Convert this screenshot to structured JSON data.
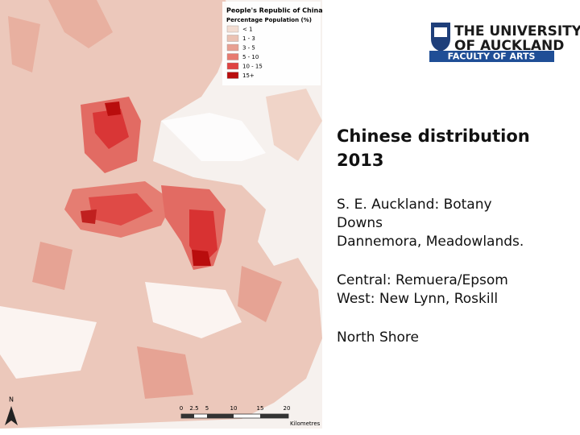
{
  "legend": {
    "title": "People's Republic of China",
    "subtitle": "Percentage Population (%)",
    "items": [
      {
        "label": "< 1",
        "color": "#f3ddd2"
      },
      {
        "label": "1 - 3",
        "color": "#ebc2b3"
      },
      {
        "label": "3 - 5",
        "color": "#e8a092"
      },
      {
        "label": "5 - 10",
        "color": "#e77a70"
      },
      {
        "label": "10 - 15",
        "color": "#df4342"
      },
      {
        "label": "15+",
        "color": "#b90d0d"
      }
    ]
  },
  "scale_bar": {
    "ticks": [
      "0",
      "2.5",
      "5",
      "10",
      "15",
      "20"
    ],
    "unit": "Kilometres"
  },
  "north": "N",
  "logo": {
    "line1": "THE UNIVERSITY",
    "line2": "OF AUCKLAND",
    "faculty": "FACULTY OF ARTS"
  },
  "content": {
    "title": [
      "Chinese distribution",
      "2013"
    ],
    "paragraphs": [
      [
        "S. E. Auckland: Botany",
        "Downs",
        "Dannemora, Meadowlands."
      ],
      [
        "Central: Remuera/Epsom",
        "West: New Lynn, Roskill"
      ],
      [
        "North Shore"
      ]
    ]
  }
}
